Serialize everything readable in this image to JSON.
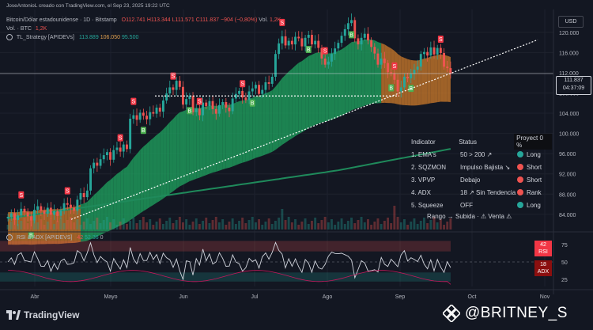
{
  "header": {
    "credit": "JoseAntonioL creado con TradingView.com, el Sep 23, 2025 19:22 UTC",
    "symbol": "Bitcoin/Dólar estadounidense · 1D · Bitstamp",
    "ohlc_o": "O112.741",
    "ohlc_h": "H113.344",
    "ohlc_l": "L111.571",
    "ohlc_c": "C111.837",
    "ohlc_chg": "−904 (−0,80%)",
    "vol_label": "Vol.",
    "vol_value": "1,2K",
    "vol_btc": "Vol. · BTC",
    "vol_btc_value": "1,2K",
    "strategy": "TL_Strategy [APIDEVs]",
    "strategy_v1": "113.889",
    "strategy_v2": "106.050",
    "strategy_v3": "95.500"
  },
  "currency": "USD",
  "price_tag": {
    "price": "111.837",
    "countdown": "04:37:09"
  },
  "indicator_table": {
    "headers": [
      "Indicator",
      "Status",
      "Proyect 0 %"
    ],
    "rows": [
      {
        "indicator": "1. EMA's",
        "status": "50 > 200 ↗",
        "signal": "Long",
        "color": "#26a69a"
      },
      {
        "indicator": "2. SQZMON",
        "status": "Impulso Bajista ↘",
        "signal": "Short",
        "color": "#ef5350"
      },
      {
        "indicator": "3. VPVP",
        "status": "Debajo",
        "signal": "Short",
        "color": "#ef5350"
      },
      {
        "indicator": "4. ADX",
        "status": "18 ↗ Sin Tendencia",
        "signal": "Rank",
        "color": "#ef5350"
      },
      {
        "indicator": "5. Squeeze",
        "status": "OFF",
        "signal": "Long",
        "color": "#26a69a"
      }
    ],
    "footer": "Rango → Subida · ⚠ Venta ⚠"
  },
  "rsi_panel": {
    "title": "RSI & ADX [APIDEVS]",
    "v1": "42",
    "v2": "52",
    "v3": "36",
    "v4": "0",
    "rsi_tag": {
      "value": "42",
      "label": "RSI"
    },
    "adx_tag": {
      "value": "18",
      "label": "ADX"
    }
  },
  "brand": {
    "logo_text": "TradingView",
    "watermark": "@BRITNEY_S"
  },
  "chart_data": {
    "type": "candlestick",
    "x_ticks": [
      "Abr",
      "Mayo",
      "Jun",
      "Jul",
      "Ago",
      "Sep",
      "Oct",
      "Nov"
    ],
    "y_ticks": [
      84000,
      88000,
      92000,
      96000,
      100000,
      104000,
      108000,
      112000,
      116000,
      120000
    ],
    "y_tick_labels": [
      "84.000",
      "88.000",
      "92.000",
      "96.000",
      "100.000",
      "104.000",
      "108.000",
      "112.000",
      "116.000",
      "120.000"
    ],
    "ylim": [
      81000,
      124500
    ],
    "last_price": 111837,
    "closes": [
      83500,
      84200,
      82900,
      83800,
      85100,
      84400,
      83600,
      82800,
      84900,
      85600,
      84700,
      84100,
      85300,
      83900,
      84600,
      83700,
      84800,
      86200,
      85900,
      85300,
      84700,
      86900,
      88200,
      87400,
      88700,
      93100,
      94200,
      93600,
      94900,
      95700,
      96300,
      94800,
      96700,
      97200,
      96400,
      97800,
      96900,
      102900,
      103600,
      102700,
      104100,
      103500,
      102800,
      104200,
      103900,
      105100,
      104300,
      106500,
      107900,
      109100,
      108600,
      110400,
      109200,
      105700,
      106800,
      107400,
      104200,
      104900,
      103600,
      106100,
      105400,
      106400,
      104800,
      103900,
      105600,
      106200,
      105100,
      104400,
      106900,
      107800,
      108400,
      107100,
      106600,
      108300,
      108900,
      109600,
      107800,
      108600,
      110100,
      109800,
      111200,
      115700,
      117800,
      119200,
      117400,
      118300,
      117600,
      119100,
      118800,
      117200,
      118900,
      119500,
      117600,
      118300,
      116900,
      114800,
      113600,
      114200,
      115700,
      116800,
      117900,
      119300,
      120600,
      121800,
      122400,
      118800,
      117600,
      118900,
      119700,
      118400,
      117100,
      115800,
      113600,
      114800,
      113900,
      112100,
      111900,
      110600,
      108300,
      109100,
      111200,
      110900,
      111800,
      112600,
      113200,
      115700,
      116100,
      115400,
      117000,
      115600,
      116900,
      115900,
      113200,
      112900,
      111837
    ],
    "sell_markers_idx": [
      4,
      18,
      34,
      38,
      50,
      58,
      71,
      83,
      96,
      117,
      131
    ],
    "buy_markers_idx": [
      7,
      41,
      55,
      74,
      91,
      104,
      116,
      122
    ],
    "rsi_axis": [
      25,
      50,
      75
    ],
    "rsi_last": 42,
    "adx_last": 18
  },
  "colors": {
    "up": "#26a69a",
    "down": "#ef5350",
    "cloud_bull": "#1fa25f",
    "cloud_bear": "#c7772a",
    "ema200": "#1f8a5b",
    "background": "#131722"
  }
}
